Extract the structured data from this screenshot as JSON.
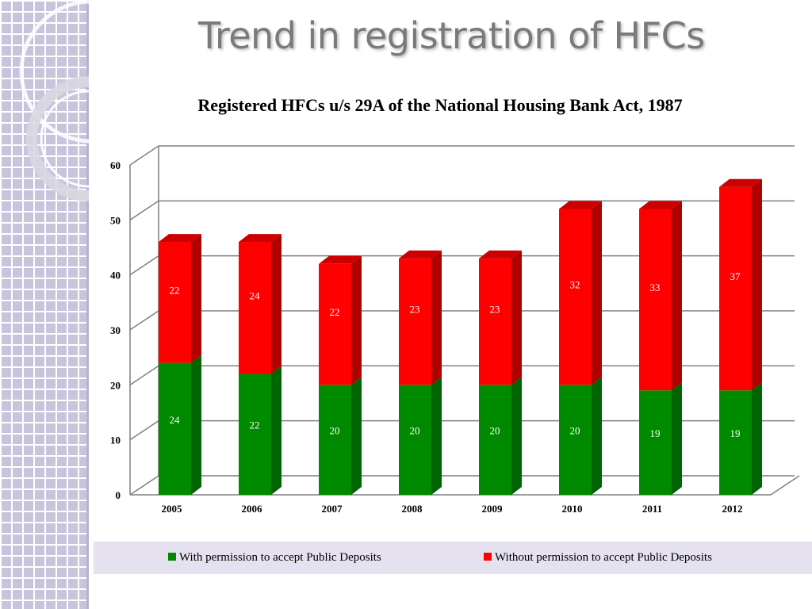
{
  "slide": {
    "title": "Trend in registration of HFCs"
  },
  "colors": {
    "green": "#008a00",
    "green_side": "#006400",
    "green_top": "#004d00",
    "red": "#ff0000",
    "red_side": "#b00000",
    "red_top": "#cc0000",
    "grid": "#7f7f7f",
    "legend_bg": "#e6e1ef"
  },
  "chart_data": {
    "type": "bar",
    "stacked": true,
    "title": "Registered HFCs u/s 29A of the National Housing Bank Act, 1987",
    "categories": [
      "2005",
      "2006",
      "2007",
      "2008",
      "2009",
      "2010",
      "2011",
      "2012"
    ],
    "series": [
      {
        "name": "With permission to accept Public Deposits",
        "values": [
          24,
          22,
          20,
          20,
          20,
          20,
          19,
          19
        ],
        "color": "#008a00"
      },
      {
        "name": "Without permission to accept Public Deposits",
        "values": [
          22,
          24,
          22,
          23,
          23,
          32,
          33,
          37
        ],
        "color": "#ff0000"
      }
    ],
    "yticks": [
      "0",
      "10",
      "20",
      "30",
      "40",
      "50",
      "60"
    ],
    "ylim": [
      0,
      60
    ],
    "grid": true,
    "legend_position": "bottom"
  }
}
